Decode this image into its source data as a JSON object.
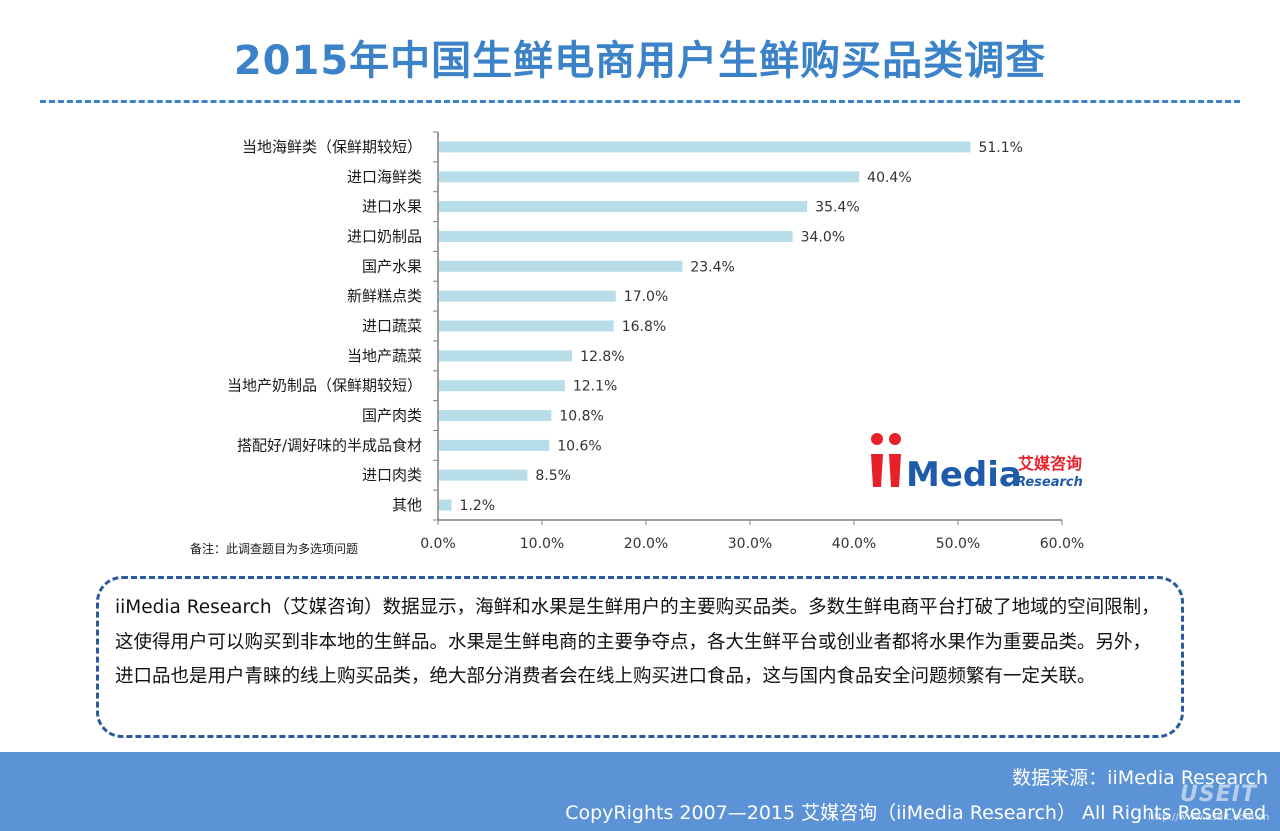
{
  "title": "2015年中国生鲜电商用户生鲜购买品类调查",
  "note": "备注：此调查题目为多选项问题",
  "summary": "iiMedia Research（艾媒咨询）数据显示，海鲜和水果是生鲜用户的主要购买品类。多数生鲜电商平台打破了地域的空间限制，这使得用户可以购买到非本地的生鲜品。水果是生鲜电商的主要争夺点，各大生鲜平台或创业者都将水果作为重要品类。另外，进口品也是用户青睐的线上购买品类，绝大部分消费者会在线上购买进口食品，这与国内食品安全问题频繁有一定关联。",
  "logo": {
    "brand": "iiMedia",
    "cn": "艾媒咨询",
    "en": "Research"
  },
  "footer": {
    "source": "数据来源：iiMedia Research",
    "copyright": "CopyRights 2007—2015 艾媒咨询（iiMedia Research） All Rights Reserved",
    "watermark": "USEIT",
    "watermark_url": "http://www.useit.com.cn"
  },
  "colors": {
    "title": "#3b82c9",
    "bar": "#b7dde8",
    "axis": "#7f7f7f",
    "footer": "#5b93d6",
    "box_border": "#2d5a9e",
    "logo_red": "#e8202a",
    "logo_blue": "#1f5ba8"
  },
  "chart_data": {
    "type": "bar",
    "orientation": "horizontal",
    "categories": [
      "当地海鲜类（保鲜期较短）",
      "进口海鲜类",
      "进口水果",
      "进口奶制品",
      "国产水果",
      "新鲜糕点类",
      "进口蔬菜",
      "当地产蔬菜",
      "当地产奶制品（保鲜期较短）",
      "国产肉类",
      "搭配好/调好味的半成品食材",
      "进口肉类",
      "其他"
    ],
    "values": [
      51.1,
      40.4,
      35.4,
      34.0,
      23.4,
      17.0,
      16.8,
      12.8,
      12.1,
      10.8,
      10.6,
      8.5,
      1.2
    ],
    "value_labels": [
      "51.1%",
      "40.4%",
      "35.4%",
      "34.0%",
      "23.4%",
      "17.0%",
      "16.8%",
      "12.8%",
      "12.1%",
      "10.8%",
      "10.6%",
      "8.5%",
      "1.2%"
    ],
    "xlim": [
      0,
      60
    ],
    "ticks": [
      0,
      10,
      20,
      30,
      40,
      50,
      60
    ],
    "tick_labels": [
      "0.0%",
      "10.0%",
      "20.0%",
      "30.0%",
      "40.0%",
      "50.0%",
      "60.0%"
    ],
    "grid": false
  }
}
